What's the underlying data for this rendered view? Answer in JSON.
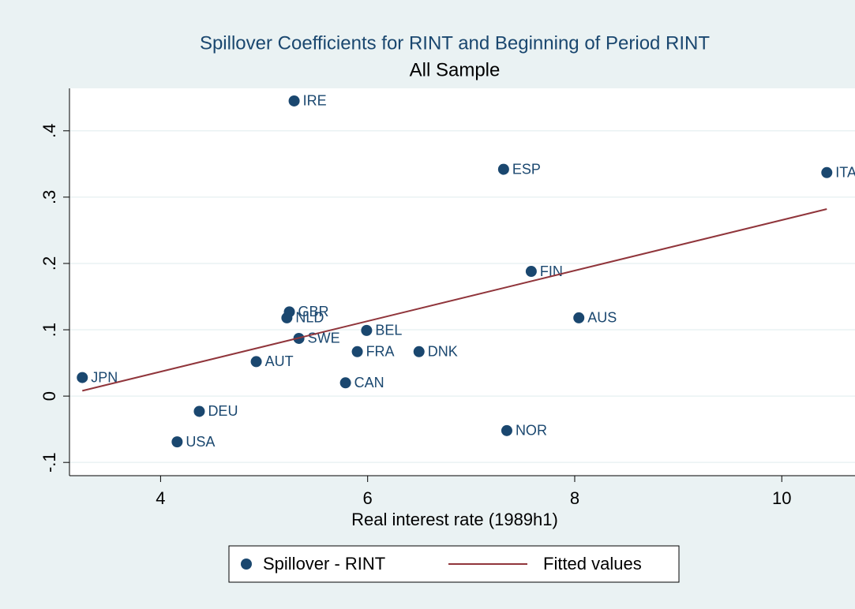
{
  "chart_data": {
    "type": "scatter",
    "title": "Spillover Coefficients for RINT and Beginning of Period RINT",
    "subtitle": "All Sample",
    "x_label": "Real interest rate (1989h1)",
    "xlim": [
      3.12,
      10.57
    ],
    "xticks": [
      4,
      6,
      8,
      10
    ],
    "ylim": [
      -0.12,
      0.464
    ],
    "yticks": [
      {
        "value": -0.1,
        "label": "-.1"
      },
      {
        "value": 0,
        "label": "0"
      },
      {
        "value": 0.1,
        "label": ".1"
      },
      {
        "value": 0.2,
        "label": ".2"
      },
      {
        "value": 0.3,
        "label": ".3"
      },
      {
        "value": 0.4,
        "label": ".4"
      }
    ],
    "grid": true,
    "legend": "bottom",
    "series": [
      {
        "name": "Spillover - RINT",
        "color": "#1a476f",
        "labels": [
          "JPN",
          "IRE",
          "ESP",
          "ITA",
          "FIN",
          "AUS",
          "GBR",
          "NLD",
          "BEL",
          "SWE",
          "FRA",
          "DNK",
          "AUT",
          "CAN",
          "DEU",
          "USA",
          "NOR"
        ],
        "x": [
          3.244,
          5.29,
          7.313,
          10.435,
          7.58,
          8.04,
          5.244,
          5.22,
          5.99,
          5.336,
          5.9,
          6.496,
          4.924,
          5.786,
          4.374,
          4.16,
          7.344
        ],
        "values": [
          0.028,
          0.445,
          0.342,
          0.337,
          0.188,
          0.118,
          0.127,
          0.118,
          0.099,
          0.087,
          0.067,
          0.067,
          0.052,
          0.02,
          -0.023,
          -0.069,
          -0.052
        ]
      },
      {
        "name": "Fitted values",
        "color": "#90353b",
        "type": "line",
        "x": [
          3.244,
          10.435
        ],
        "values": [
          0.008,
          0.282
        ]
      }
    ]
  }
}
